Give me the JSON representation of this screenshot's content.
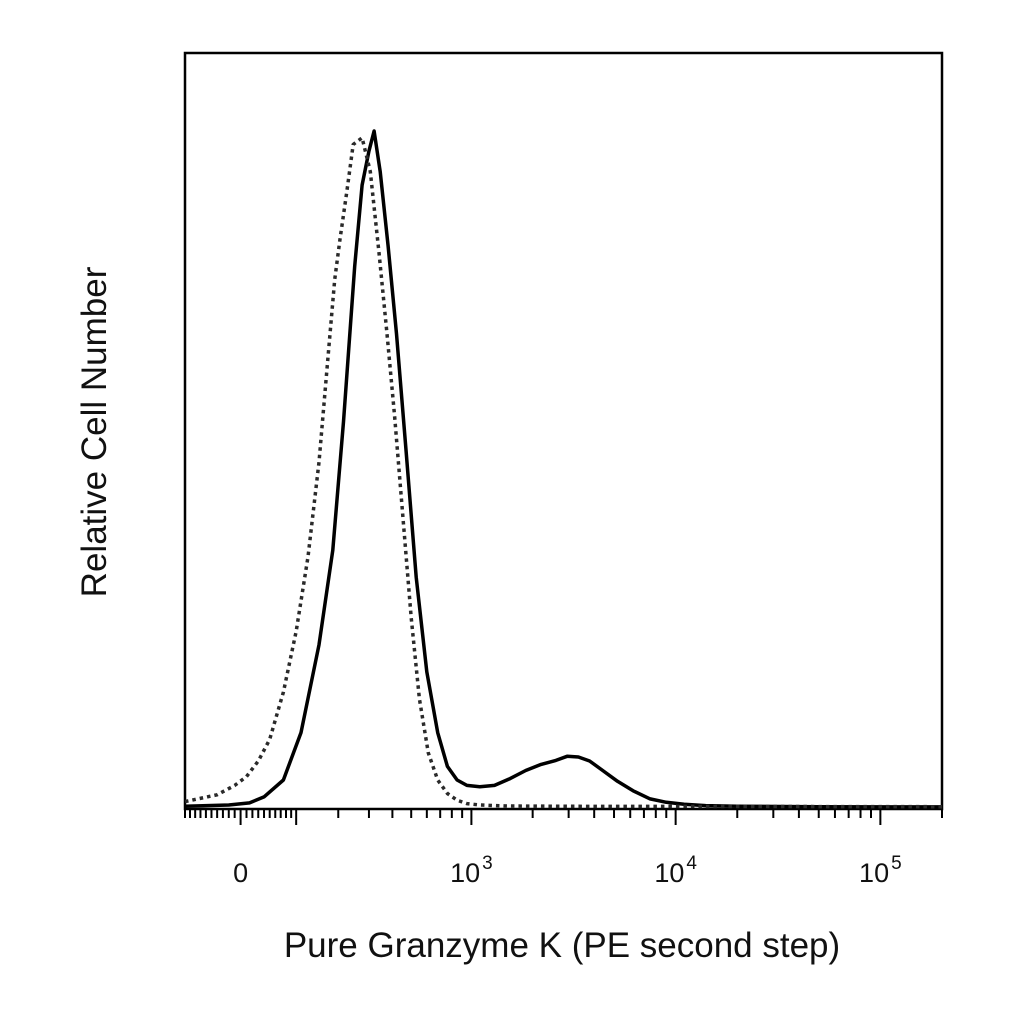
{
  "chart_data": {
    "type": "line",
    "xlabel": "Pure Granzyme K (PE second step)",
    "ylabel": "Relative Cell Number",
    "x_scale": "biexponential",
    "xlim": [
      -100,
      200000
    ],
    "ylim": [
      0,
      100
    ],
    "x_tick_labels": [
      {
        "value": 0,
        "base": "0",
        "exp": ""
      },
      {
        "value": 1000,
        "base": "10",
        "exp": "3"
      },
      {
        "value": 10000,
        "base": "10",
        "exp": "4"
      },
      {
        "value": 100000,
        "base": "10",
        "exp": "5"
      }
    ],
    "grid": false,
    "legend": "none",
    "series": [
      {
        "style": "solid",
        "color": "#000000",
        "points": [
          [
            -100,
            0.1
          ],
          [
            -20,
            0.3
          ],
          [
            15,
            0.6
          ],
          [
            40,
            1.5
          ],
          [
            75,
            4
          ],
          [
            110,
            11
          ],
          [
            150,
            24
          ],
          [
            185,
            38
          ],
          [
            215,
            57
          ],
          [
            250,
            80
          ],
          [
            275,
            92
          ],
          [
            300,
            97
          ],
          [
            320,
            100
          ],
          [
            345,
            94
          ],
          [
            380,
            83
          ],
          [
            420,
            70
          ],
          [
            470,
            53
          ],
          [
            530,
            34
          ],
          [
            600,
            20
          ],
          [
            680,
            11
          ],
          [
            760,
            6
          ],
          [
            850,
            4
          ],
          [
            950,
            3.2
          ],
          [
            1100,
            3
          ],
          [
            1300,
            3.2
          ],
          [
            1550,
            4.2
          ],
          [
            1850,
            5.4
          ],
          [
            2200,
            6.3
          ],
          [
            2600,
            6.9
          ],
          [
            2950,
            7.5
          ],
          [
            3350,
            7.4
          ],
          [
            3800,
            6.8
          ],
          [
            4400,
            5.4
          ],
          [
            5200,
            3.8
          ],
          [
            6200,
            2.4
          ],
          [
            7500,
            1.2
          ],
          [
            9000,
            0.7
          ],
          [
            11000,
            0.4
          ],
          [
            14000,
            0.2
          ],
          [
            20000,
            0.1
          ],
          [
            50000,
            0.05
          ],
          [
            200000,
            0.02
          ]
        ]
      },
      {
        "style": "dotted",
        "color": "#2a2a2a",
        "points": [
          [
            -100,
            0.8
          ],
          [
            -40,
            1.8
          ],
          [
            -10,
            3.2
          ],
          [
            10,
            4.5
          ],
          [
            30,
            6.8
          ],
          [
            50,
            10
          ],
          [
            75,
            17
          ],
          [
            100,
            26
          ],
          [
            125,
            37
          ],
          [
            150,
            51
          ],
          [
            170,
            65
          ],
          [
            190,
            78
          ],
          [
            205,
            84
          ],
          [
            225,
            91
          ],
          [
            245,
            98
          ],
          [
            275,
            99
          ],
          [
            305,
            94
          ],
          [
            340,
            82
          ],
          [
            375,
            70
          ],
          [
            410,
            58
          ],
          [
            450,
            44
          ],
          [
            500,
            28
          ],
          [
            550,
            16
          ],
          [
            610,
            8
          ],
          [
            680,
            4
          ],
          [
            760,
            2
          ],
          [
            850,
            1
          ],
          [
            950,
            0.5
          ],
          [
            1100,
            0.3
          ],
          [
            1500,
            0.15
          ],
          [
            3000,
            0.1
          ],
          [
            200000,
            0.05
          ]
        ]
      }
    ]
  }
}
